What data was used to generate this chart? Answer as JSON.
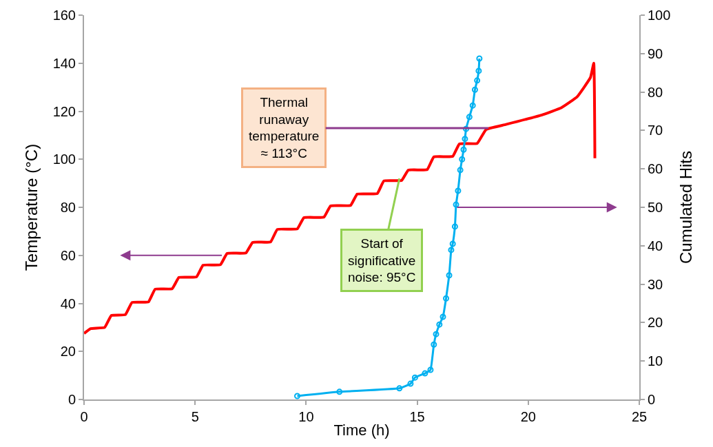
{
  "chart_data": {
    "type": "line",
    "xlabel": "Time (h)",
    "ylabel": "Temperature (°C)",
    "y2label": "Cumulated Hits",
    "xlim": [
      0,
      25
    ],
    "xticks": [
      0,
      5,
      10,
      15,
      20,
      25
    ],
    "ylim": [
      0,
      160
    ],
    "yticks": [
      0,
      20,
      40,
      60,
      80,
      100,
      120,
      140,
      160
    ],
    "y2lim": [
      0,
      100
    ],
    "y2ticks": [
      0,
      10,
      20,
      30,
      40,
      50,
      60,
      70,
      80,
      90,
      100
    ],
    "series": [
      {
        "color": "#ff0000",
        "marker": "none",
        "x": [
          0,
          0.3,
          0.93,
          1.23,
          1.86,
          2.16,
          2.9,
          3.2,
          3.97,
          4.27,
          5.06,
          5.36,
          6.14,
          6.44,
          7.29,
          7.59,
          8.4,
          8.7,
          9.6,
          9.9,
          10.8,
          11.1,
          12.0,
          12.3,
          13.2,
          13.5,
          14.3,
          14.6,
          15.45,
          15.75,
          16.6,
          16.9,
          17.7,
          18.1,
          19.0,
          20.6,
          21.5,
          22.2,
          22.8,
          22.95,
          23.0
        ],
        "values": [
          27.5,
          29.5,
          30,
          35,
          35.3,
          40.4,
          40.6,
          45.9,
          46.1,
          50.8,
          51,
          55.9,
          56.1,
          60.8,
          61,
          65.4,
          65.6,
          70.8,
          71,
          75.7,
          75.9,
          80.6,
          80.8,
          85.5,
          85.7,
          91,
          91.2,
          95.5,
          95.7,
          101,
          101.2,
          106.4,
          106.6,
          112.4,
          114.5,
          118.4,
          121.5,
          126,
          134,
          140,
          100.4
        ]
      },
      {
        "color": "#00b0f0",
        "marker": "circle",
        "axis": "y2",
        "x": [
          9.6,
          11.5,
          14.2,
          14.7,
          14.9,
          15.35,
          15.6,
          15.75,
          15.85,
          16.0,
          16.16,
          16.3,
          16.44,
          16.53,
          16.6,
          16.7,
          16.75,
          16.84,
          16.94,
          17.02,
          17.09,
          17.15,
          17.2,
          17.35,
          17.5,
          17.6,
          17.7,
          17.77,
          17.8
        ],
        "values": [
          0.9,
          2.0,
          2.9,
          4.1,
          5.7,
          6.8,
          7.7,
          14.3,
          17,
          19.5,
          21.5,
          26.3,
          32.3,
          38.9,
          40.5,
          45,
          50.7,
          54.3,
          59.7,
          62.5,
          65,
          67.8,
          70.4,
          73.5,
          76.5,
          80.6,
          83,
          85.5,
          88.7
        ]
      }
    ],
    "annotations": [
      {
        "text": "Thermal\nrunaway\ntemperature\n≈ 113°C",
        "x": 18.2,
        "y": 113
      },
      {
        "text": "Start of\nsignificative\nnoise: 95°C",
        "x": 14.2,
        "y": 92
      }
    ]
  }
}
